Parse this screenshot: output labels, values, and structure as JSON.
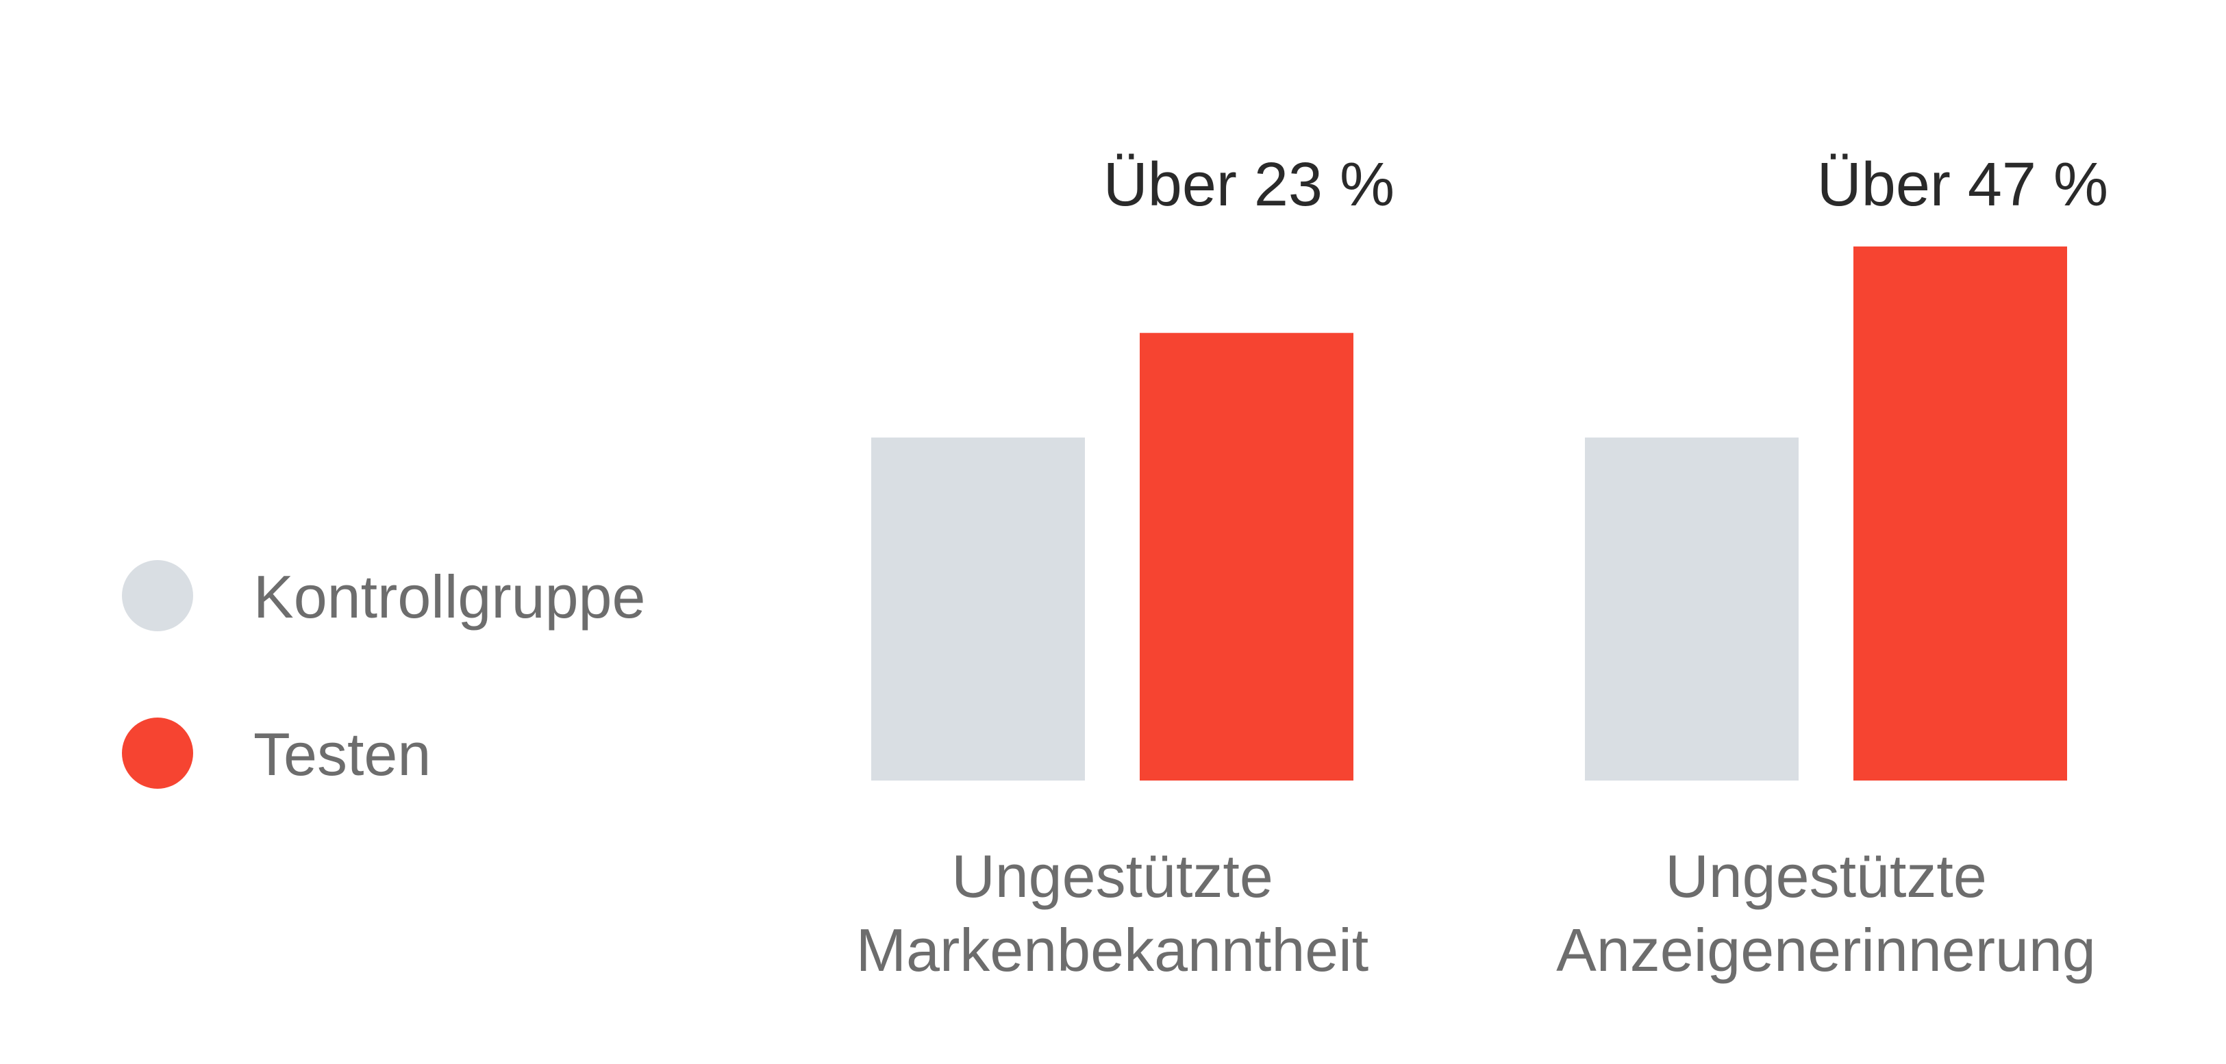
{
  "chart_data": {
    "type": "bar",
    "categories": [
      [
        "Ungestützte",
        "Markenbekanntheit"
      ],
      [
        "Ungestützte",
        "Anzeigenerinnerung"
      ]
    ],
    "series": [
      {
        "name": "Kontrollgruppe",
        "color": "#d9dee3",
        "values": [
          100,
          100
        ]
      },
      {
        "name": "Testen",
        "color": "#f64431",
        "values": [
          130.5,
          155.7
        ]
      }
    ],
    "data_labels": [
      "Über 23 %",
      "Über 47 %"
    ],
    "legend": {
      "position": "left"
    },
    "grid": false,
    "axes_visible": false,
    "ylim": [
      0,
      160
    ]
  },
  "legend_items": [
    {
      "label": "Kontrollgruppe",
      "color": "#d9dee3",
      "icon": "circle"
    },
    {
      "label": "Testen",
      "color": "#f64431",
      "icon": "circle"
    }
  ]
}
